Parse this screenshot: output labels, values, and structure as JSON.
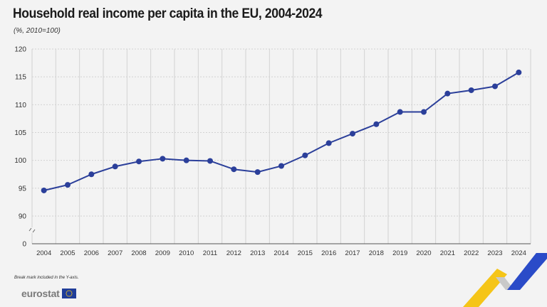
{
  "header": {
    "title": "Household real income per capita in the EU, 2004-2024",
    "subtitle": "(%, 2010=100)"
  },
  "footer": {
    "note": "Break mark included in the Y-axis.",
    "logo_text": "eurostat"
  },
  "colors": {
    "line": "#2b3f9a",
    "grid": "#d2d2d2",
    "background": "#f3f3f3",
    "logo_yellow": "#f5c518",
    "logo_blue": "#2a4bc8"
  },
  "chart_data": {
    "type": "line",
    "title": "Household real income per capita in the EU, 2004-2024",
    "subtitle": "(%, 2010=100)",
    "categories": [
      "2004",
      "2005",
      "2006",
      "2007",
      "2008",
      "2009",
      "2010",
      "2011",
      "2012",
      "2013",
      "2014",
      "2015",
      "2016",
      "2017",
      "2018",
      "2019",
      "2020",
      "2021",
      "2022",
      "2023",
      "2024"
    ],
    "series": [
      {
        "values": [
          94.6,
          95.6,
          97.5,
          98.9,
          99.8,
          100.3,
          100.0,
          99.9,
          98.4,
          97.9,
          99.0,
          100.9,
          103.1,
          104.8,
          106.5,
          108.7,
          108.7,
          112.0,
          112.6,
          113.3,
          115.8
        ]
      }
    ],
    "yticks": [
      "0",
      "90",
      "95",
      "100",
      "105",
      "110",
      "115",
      "120"
    ],
    "ylim": [
      90,
      120
    ],
    "y_break": true,
    "grid": true,
    "legend": "none"
  }
}
